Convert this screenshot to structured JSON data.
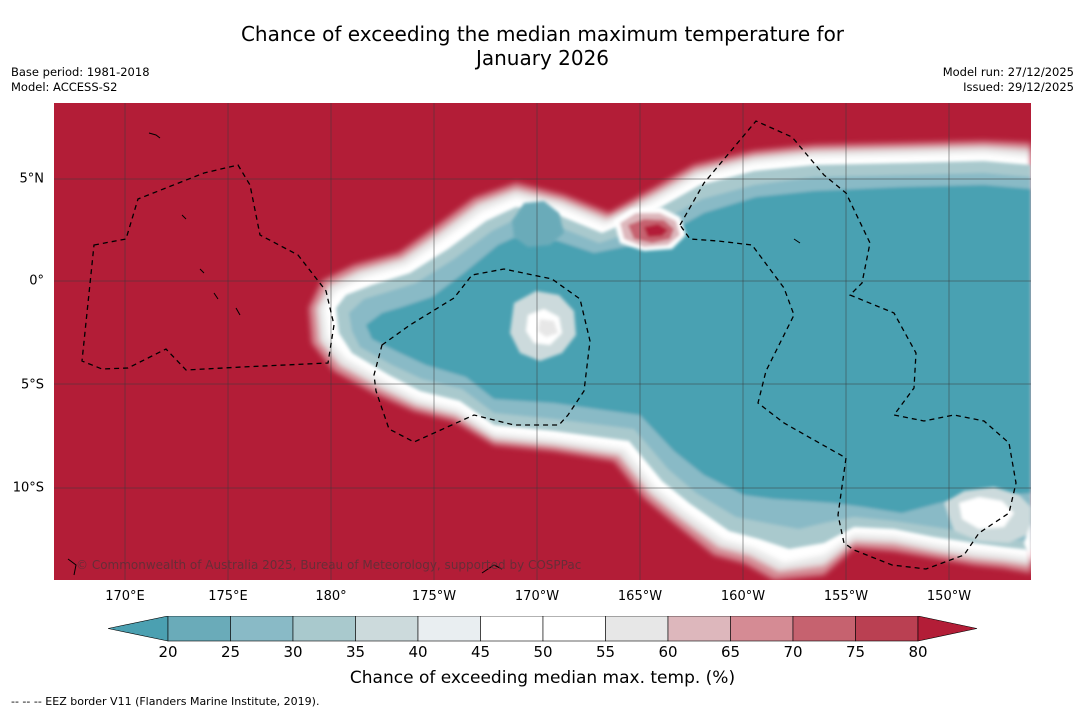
{
  "title": {
    "line1": "Chance of exceeding the median maximum temperature for",
    "line2": "January 2026"
  },
  "meta": {
    "base_period": "Base period: 1981-2018",
    "model": "Model: ACCESS-S2",
    "model_run": "Model run: 27/12/2025",
    "issued": "Issued: 29/12/2025"
  },
  "map": {
    "copyright": "© Commonwealth of Australia 2025, Bureau of Meteorology, supported by COSPPac",
    "lon_labels": [
      "170°E",
      "175°E",
      "180°",
      "175°W",
      "170°W",
      "165°W",
      "160°W",
      "155°W",
      "150°W"
    ],
    "lat_labels": [
      "5°N",
      "0°",
      "5°S",
      "10°S"
    ],
    "colors": {
      "warm_dominant": "#b31d37",
      "cool_dominant": "#49a1b2",
      "graticule": "#3a3a3a",
      "eez": "#000000"
    }
  },
  "colorbar": {
    "ticks": [
      "20",
      "25",
      "30",
      "35",
      "40",
      "45",
      "50",
      "55",
      "60",
      "65",
      "70",
      "75",
      "80"
    ],
    "colors": [
      "#4ba0b1",
      "#6aabb9",
      "#89bac6",
      "#a9c9cd",
      "#ccdadc",
      "#e9eef1",
      "#ffffff",
      "#ffffff",
      "#e7e7e7",
      "#ddb7bc",
      "#d58b94",
      "#c6626f",
      "#ba4052",
      "#b31d37"
    ],
    "title": "Chance of exceeding median max. temp. (%)"
  },
  "footnote": "--  --  -- EEZ border V11 (Flanders Marine Institute, 2019)."
}
